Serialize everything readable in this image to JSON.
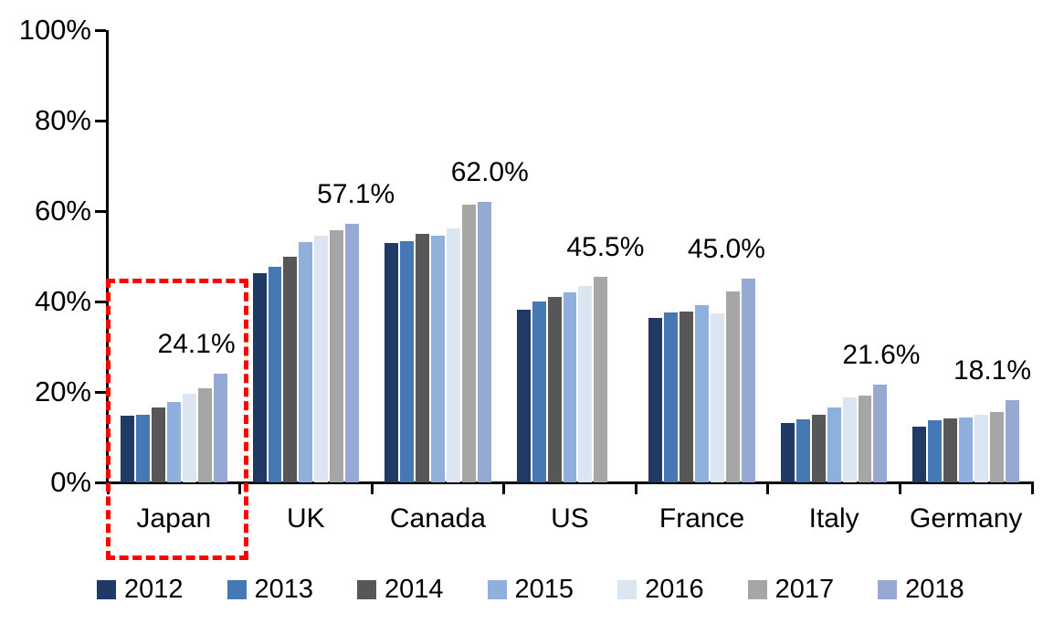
{
  "chart_data": {
    "type": "bar",
    "title": "",
    "xlabel": "",
    "ylabel": "",
    "ylim": [
      0,
      100
    ],
    "ytick_labels": [
      "0%",
      "20%",
      "40%",
      "60%",
      "80%",
      "100%"
    ],
    "grid": false,
    "legend_position": "bottom",
    "categories": [
      "Japan",
      "UK",
      "Canada",
      "US",
      "France",
      "Italy",
      "Germany"
    ],
    "series": [
      {
        "name": "2012",
        "color": "#1F3A64",
        "values": [
          14.7,
          46.3,
          52.9,
          38.2,
          36.4,
          13.2,
          12.3
        ]
      },
      {
        "name": "2013",
        "color": "#4678B4",
        "values": [
          15.0,
          47.7,
          53.4,
          40.1,
          37.5,
          13.9,
          13.7
        ]
      },
      {
        "name": "2014",
        "color": "#575757",
        "values": [
          16.5,
          49.8,
          54.9,
          41.0,
          37.7,
          15.0,
          14.1
        ]
      },
      {
        "name": "2015",
        "color": "#8FB0DC",
        "values": [
          17.8,
          53.2,
          54.6,
          42.1,
          39.2,
          16.6,
          14.3
        ]
      },
      {
        "name": "2016",
        "color": "#DCE6F2",
        "values": [
          19.6,
          54.6,
          56.1,
          43.5,
          37.3,
          18.8,
          15.0
        ]
      },
      {
        "name": "2017",
        "color": "#A6A6A6",
        "values": [
          20.8,
          55.7,
          61.5,
          45.5,
          42.2,
          19.1,
          15.6
        ]
      },
      {
        "name": "2018",
        "color": "#96A9D2",
        "values": [
          24.1,
          57.1,
          62.0,
          null,
          45.0,
          21.6,
          18.1
        ]
      }
    ],
    "data_labels": [
      {
        "category": "Japan",
        "series": "2018",
        "text": "24.1%",
        "dx": -26
      },
      {
        "category": "UK",
        "series": "2018",
        "text": "57.1%",
        "dx": 4
      },
      {
        "category": "Canada",
        "series": "2018",
        "text": "62.0%",
        "dx": 6
      },
      {
        "category": "US",
        "series": "2017",
        "text": "45.5%",
        "dx": 5
      },
      {
        "category": "France",
        "series": "2018",
        "text": "45.0%",
        "dx": -24
      },
      {
        "category": "Italy",
        "series": "2018",
        "text": "21.6%",
        "dx": 1
      },
      {
        "category": "Germany",
        "series": "2018",
        "text": "18.1%",
        "dx": -22
      }
    ],
    "highlight": {
      "category": "Japan",
      "style": "dashed-box",
      "color": "#FF0000"
    }
  }
}
